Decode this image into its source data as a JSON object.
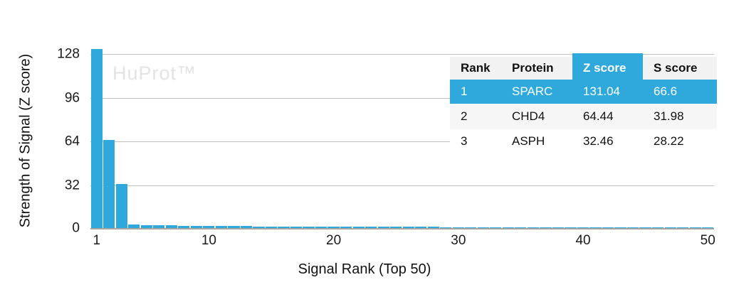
{
  "watermark": "HuProt™",
  "colors": {
    "bar_blue": "#2fa9dc",
    "table_highlight_blue": "#2fa9dc",
    "gridline_gray": "#bfbfbf",
    "axis_gray": "#a6a6a6",
    "watermark_gray": "#e3e3e3",
    "header_bg": "#f2f2f2",
    "stripe_bg": "#f6f6f6",
    "text": "#1a1a1a"
  },
  "chart_data": {
    "type": "bar",
    "title": "",
    "xlabel": "Signal Rank (Top 50)",
    "ylabel": "Strength of Signal (Z score)",
    "x_range": [
      1,
      50
    ],
    "values": [
      131.04,
      64.44,
      32.46,
      2.5,
      2.3,
      2.1,
      1.9,
      1.8,
      1.65,
      1.55,
      1.45,
      1.4,
      1.35,
      1.3,
      1.25,
      1.2,
      1.15,
      1.1,
      1.05,
      1.0,
      0.98,
      0.95,
      0.92,
      0.9,
      0.88,
      0.85,
      0.83,
      0.8,
      0.78,
      0.76,
      0.74,
      0.72,
      0.7,
      0.69,
      0.67,
      0.66,
      0.64,
      0.63,
      0.62,
      0.6,
      0.59,
      0.58,
      0.57,
      0.56,
      0.55,
      0.54,
      0.53,
      0.52,
      0.51,
      0.5
    ],
    "yticks": [
      0,
      32,
      64,
      96,
      128
    ],
    "xticks": [
      1,
      10,
      20,
      30,
      40,
      50
    ],
    "ylim": [
      0,
      137
    ],
    "grid": true,
    "legend": false,
    "bar_color": "#2fa9dc"
  },
  "table": {
    "columns": [
      "Rank",
      "Protein",
      "Z score",
      "S score"
    ],
    "highlight_column_index": 2,
    "highlight_row_index": 0,
    "rows": [
      [
        "1",
        "SPARC",
        "131.04",
        "66.6"
      ],
      [
        "2",
        "CHD4",
        "64.44",
        "31.98"
      ],
      [
        "3",
        "ASPH",
        "32.46",
        "28.22"
      ]
    ]
  }
}
